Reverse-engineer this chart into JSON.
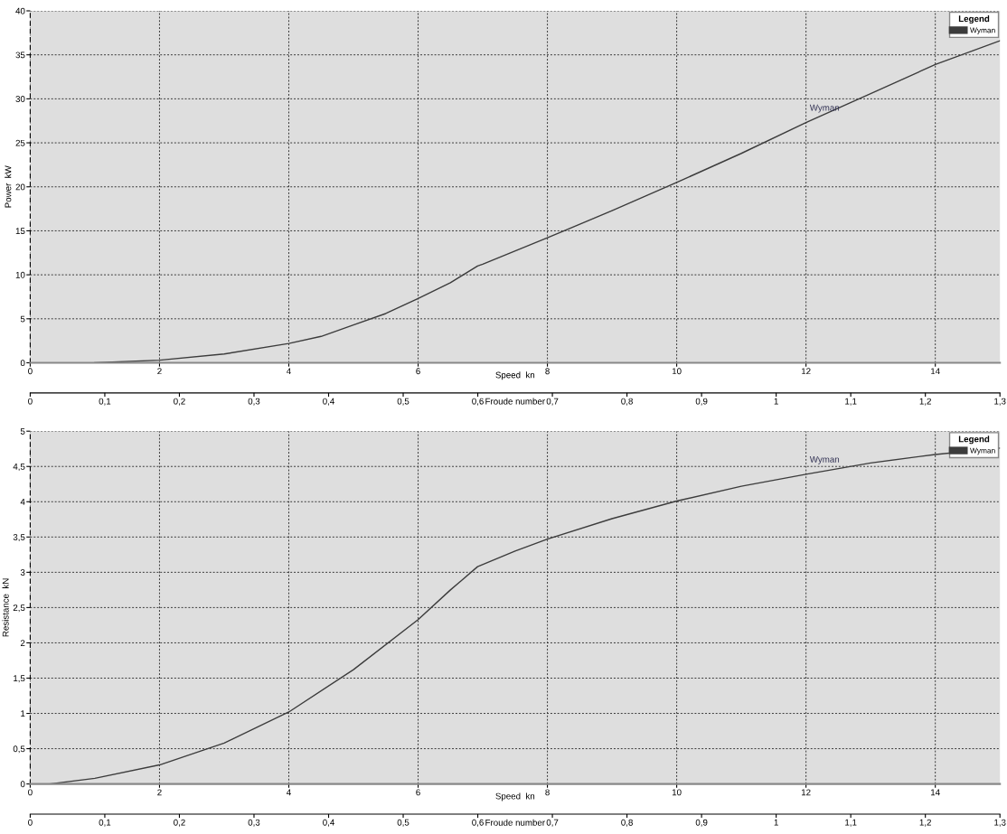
{
  "chart_data": [
    {
      "type": "line",
      "xlabel": "Speed  kn",
      "x2label": "Froude number",
      "ylabel": "Power  kW",
      "legend_title": "Legend",
      "legend": "top right",
      "grid": true,
      "line_style": "solid",
      "xlim": [
        0,
        15
      ],
      "xticks": [
        0,
        2,
        4,
        6,
        8,
        10,
        12,
        14
      ],
      "x2lim": [
        0,
        1.3
      ],
      "x2ticks": [
        0,
        {
          "value": 0.1,
          "label": "0,1"
        },
        {
          "value": 0.2,
          "label": "0,2"
        },
        {
          "value": 0.3,
          "label": "0,3"
        },
        {
          "value": 0.4,
          "label": "0,4"
        },
        {
          "value": 0.5,
          "label": "0,5"
        },
        {
          "value": 0.6,
          "label": "0,6"
        },
        {
          "value": 0.7,
          "label": "0,7"
        },
        {
          "value": 0.8,
          "label": "0,8"
        },
        {
          "value": 0.9,
          "label": "0,9"
        },
        1,
        {
          "value": 1.1,
          "label": "1,1"
        },
        {
          "value": 1.2,
          "label": "1,2"
        },
        {
          "value": 1.3,
          "label": "1,3"
        }
      ],
      "ylim": [
        0,
        40
      ],
      "yticks": [
        0,
        5,
        10,
        15,
        20,
        25,
        30,
        35,
        40
      ],
      "series": [
        {
          "name": "Wyman",
          "color": "#3c3c3c",
          "x": [
            1,
            2,
            3,
            4,
            4.5,
            5,
            5.5,
            6,
            6.5,
            6.92,
            7,
            8,
            9,
            10,
            11,
            12,
            13,
            14,
            15
          ],
          "values": [
            0,
            0.3,
            1.0,
            2.2,
            3.0,
            4.3,
            5.6,
            7.3,
            9.1,
            11.0,
            11.2,
            14.2,
            17.3,
            20.5,
            23.8,
            27.3,
            30.6,
            33.9,
            36.6
          ]
        }
      ]
    },
    {
      "type": "line",
      "xlabel": "Speed  kn",
      "x2label": "Froude number",
      "ylabel": "Resistance  kN",
      "legend_title": "Legend",
      "legend": "top right",
      "grid": true,
      "line_style": "solid",
      "xlim": [
        0,
        15
      ],
      "xticks": [
        0,
        2,
        4,
        6,
        8,
        10,
        12,
        14
      ],
      "x2lim": [
        0,
        1.3
      ],
      "x2ticks": [
        0,
        {
          "value": 0.1,
          "label": "0,1"
        },
        {
          "value": 0.2,
          "label": "0,2"
        },
        {
          "value": 0.3,
          "label": "0,3"
        },
        {
          "value": 0.4,
          "label": "0,4"
        },
        {
          "value": 0.5,
          "label": "0,5"
        },
        {
          "value": 0.6,
          "label": "0,6"
        },
        {
          "value": 0.7,
          "label": "0,7"
        },
        {
          "value": 0.8,
          "label": "0,8"
        },
        {
          "value": 0.9,
          "label": "0,9"
        },
        1,
        {
          "value": 1.1,
          "label": "1,1"
        },
        {
          "value": 1.2,
          "label": "1,2"
        },
        {
          "value": 1.3,
          "label": "1,3"
        }
      ],
      "ylim": [
        0,
        5
      ],
      "yticks": [
        0,
        {
          "value": 0.5,
          "label": "0,5"
        },
        1,
        {
          "value": 1.5,
          "label": "1,5"
        },
        2,
        {
          "value": 2.5,
          "label": "2,5"
        },
        3,
        {
          "value": 3.5,
          "label": "3,5"
        },
        4,
        {
          "value": 4.5,
          "label": "4,5"
        },
        5
      ],
      "series": [
        {
          "name": "Wyman",
          "color": "#3c3c3c",
          "x": [
            0.3,
            1,
            2,
            3,
            4,
            5,
            6,
            6.5,
            6.92,
            7.5,
            8,
            9,
            10,
            11,
            12,
            13,
            14,
            15
          ],
          "values": [
            0,
            0.08,
            0.27,
            0.58,
            1.02,
            1.62,
            2.33,
            2.75,
            3.08,
            3.3,
            3.47,
            3.76,
            4.01,
            4.22,
            4.39,
            4.55,
            4.67,
            4.76
          ]
        }
      ]
    }
  ]
}
